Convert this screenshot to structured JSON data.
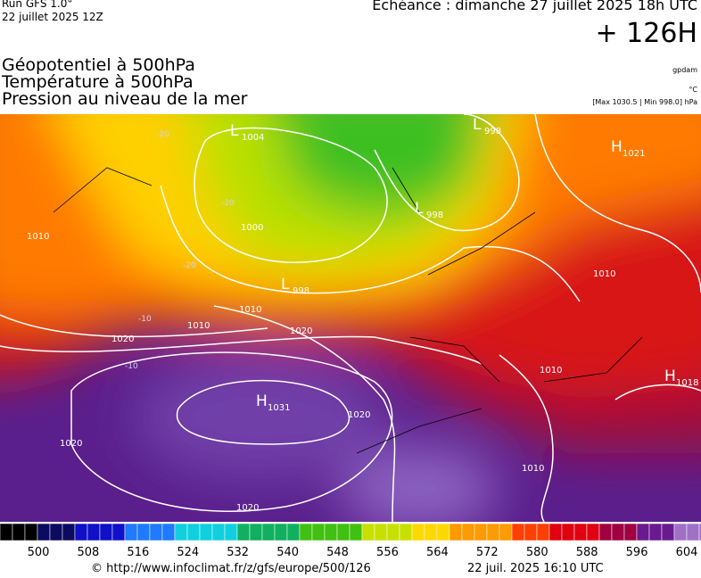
{
  "header": {
    "run": "Run GFS 1.0°",
    "run_date": "22 juillet 2025 12Z",
    "valid": "Echéance : dimanche 27 juillet 2025 18h UTC",
    "lead": "+ 126H",
    "fields": [
      "Géopotentiel à 500hPa",
      "Température à 500hPa",
      "Pression au niveau de la mer"
    ],
    "units": [
      "gpdam",
      "°C",
      "[Max 1030.5 | Min 998.0] hPa"
    ]
  },
  "map": {
    "centers": [
      {
        "kind": "L",
        "value": "1004"
      },
      {
        "kind": "L",
        "value": "998"
      },
      {
        "kind": "L",
        "value": "998"
      },
      {
        "kind": "L",
        "value": "998"
      },
      {
        "kind": "H",
        "value": "1021"
      },
      {
        "kind": "H",
        "value": "1031"
      },
      {
        "kind": "H",
        "value": "1018"
      }
    ],
    "isobar_labels": [
      "1010",
      "1020",
      "1010",
      "1020",
      "1020",
      "1020",
      "1000",
      "1010",
      "1010",
      "1010",
      "1010",
      "1020"
    ],
    "temperature_labels": [
      "-20",
      "-20",
      "-20",
      "-10",
      "-10"
    ]
  },
  "colorbar": {
    "ticks": [
      500,
      508,
      516,
      524,
      532,
      540,
      548,
      556,
      564,
      572,
      580,
      588,
      596,
      604
    ]
  },
  "footer": {
    "url": "© http://www.infoclimat.fr/z/gfs/europe/500/126",
    "timestamp": "22 juil. 2025 16:10 UTC"
  }
}
